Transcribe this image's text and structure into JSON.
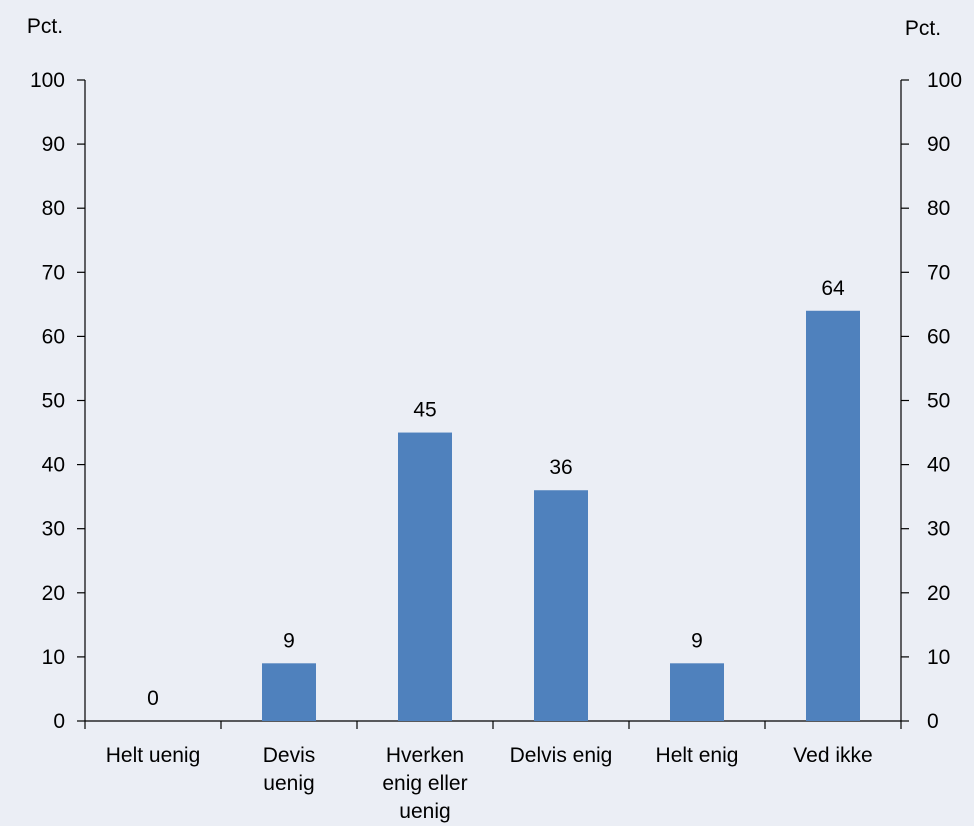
{
  "chart_data": {
    "type": "bar",
    "categories": [
      "Helt uenig",
      "Devis uenig",
      "Hverken enig eller uenig",
      "Delvis enig",
      "Helt enig",
      "Ved ikke"
    ],
    "category_lines": [
      [
        "Helt uenig"
      ],
      [
        "Devis",
        "uenig"
      ],
      [
        "Hverken",
        "enig eller",
        "uenig"
      ],
      [
        "Delvis enig"
      ],
      [
        "Helt enig"
      ],
      [
        "Ved ikke"
      ]
    ],
    "values": [
      0,
      9,
      45,
      36,
      9,
      64
    ],
    "data_labels": [
      "0",
      "9",
      "45",
      "36",
      "9",
      "64"
    ],
    "ylabel_left": "Pct.",
    "ylabel_right": "Pct.",
    "ylim": [
      0,
      100
    ],
    "yticks": [
      0,
      10,
      20,
      30,
      40,
      50,
      60,
      70,
      80,
      90,
      100
    ],
    "grid": false,
    "bar_color": "#4f81bd",
    "background_color": "#ebeef5"
  }
}
